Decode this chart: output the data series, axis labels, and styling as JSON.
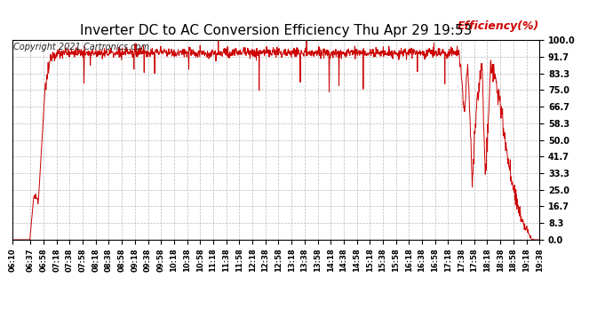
{
  "title": "Inverter DC to AC Conversion Efficiency Thu Apr 29 19:53",
  "ylabel": "Efficiency(%)",
  "copyright": "Copyright 2021 Cartronics.com",
  "line_color": "#cc0000",
  "bg_color": "#ffffff",
  "grid_color": "#aaaaaa",
  "title_fontsize": 11,
  "ylabel_color": "#cc0000",
  "ylabel_fontsize": 9,
  "copyright_fontsize": 7,
  "ytick_labels": [
    "0.0",
    "8.3",
    "16.7",
    "25.0",
    "33.3",
    "41.7",
    "50.0",
    "58.3",
    "66.7",
    "75.0",
    "83.3",
    "91.7",
    "100.0"
  ],
  "ytick_values": [
    0.0,
    8.3,
    16.7,
    25.0,
    33.3,
    41.7,
    50.0,
    58.3,
    66.7,
    75.0,
    83.3,
    91.7,
    100.0
  ],
  "ylim": [
    0.0,
    100.0
  ],
  "xtick_labels": [
    "06:10",
    "06:37",
    "06:58",
    "07:18",
    "07:38",
    "07:58",
    "08:18",
    "08:38",
    "08:58",
    "09:18",
    "09:38",
    "09:58",
    "10:18",
    "10:38",
    "10:58",
    "11:18",
    "11:38",
    "11:58",
    "12:18",
    "12:38",
    "12:58",
    "13:18",
    "13:38",
    "13:58",
    "14:18",
    "14:38",
    "14:58",
    "15:18",
    "15:38",
    "15:58",
    "16:18",
    "16:38",
    "16:58",
    "17:18",
    "17:38",
    "17:58",
    "18:18",
    "18:38",
    "18:58",
    "19:18",
    "19:38"
  ]
}
